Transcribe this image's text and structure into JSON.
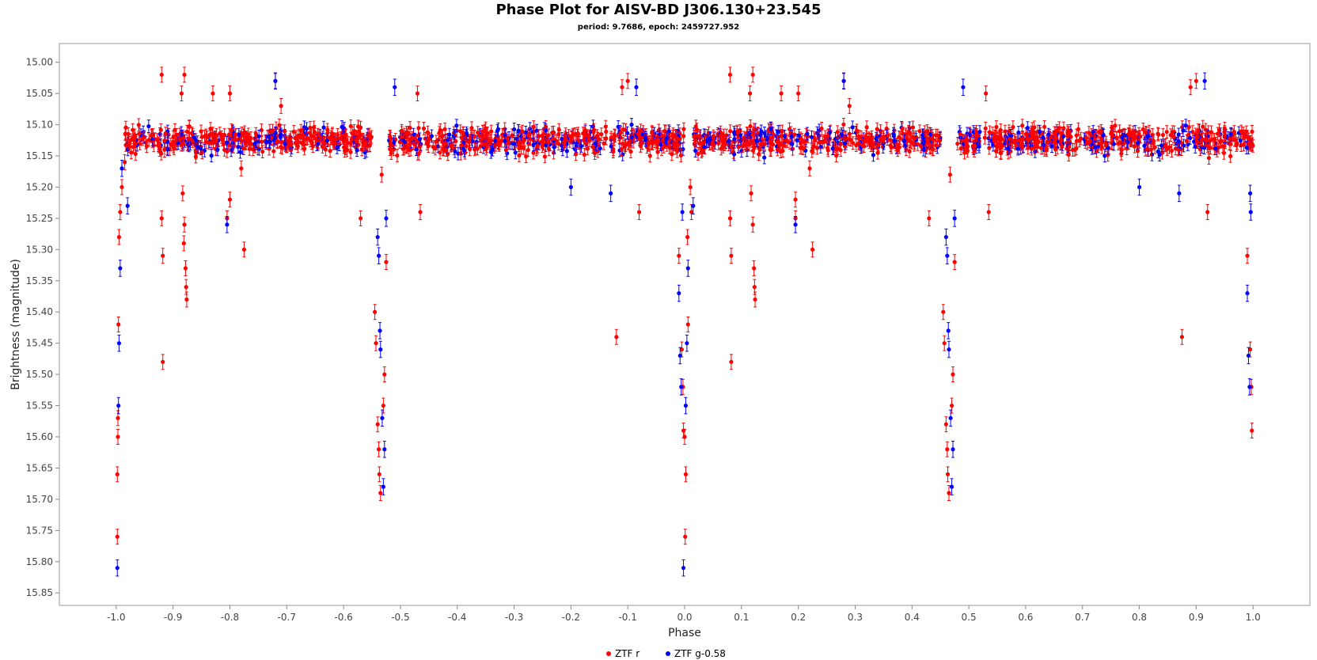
{
  "chart_data": {
    "type": "scatter",
    "title": "Phase Plot for AISV-BD J306.130+23.545",
    "subtitle": "period: 9.7686, epoch: 2459727.952",
    "xlabel": "Phase",
    "ylabel": "Brightness (magnitude)",
    "xlim": [
      -1.1,
      1.1
    ],
    "ylim": [
      15.87,
      14.97
    ],
    "y_inverted": true,
    "grid": false,
    "legend_position": "bottom-center",
    "x_ticks": [
      -1.0,
      -0.9,
      -0.8,
      -0.7,
      -0.6,
      -0.5,
      -0.4,
      -0.3,
      -0.2,
      -0.1,
      0.0,
      0.1,
      0.2,
      0.3,
      0.4,
      0.5,
      0.6,
      0.7,
      0.8,
      0.9,
      1.0
    ],
    "x_tick_labels": [
      "-1.0",
      "-0.9",
      "-0.8",
      "-0.7",
      "-0.6",
      "-0.5",
      "-0.4",
      "-0.3",
      "-0.2",
      "-0.1",
      "0.0",
      "0.1",
      "0.2",
      "0.3",
      "0.4",
      "0.5",
      "0.6",
      "0.7",
      "0.8",
      "0.9",
      "1.0"
    ],
    "y_ticks": [
      15.0,
      15.05,
      15.1,
      15.15,
      15.2,
      15.25,
      15.3,
      15.35,
      15.4,
      15.45,
      15.5,
      15.55,
      15.6,
      15.65,
      15.7,
      15.75,
      15.8,
      15.85
    ],
    "y_tick_labels": [
      "15.00",
      "15.05",
      "15.10",
      "15.15",
      "15.20",
      "15.25",
      "15.30",
      "15.35",
      "15.40",
      "15.45",
      "15.50",
      "15.55",
      "15.60",
      "15.65",
      "15.70",
      "15.75",
      "15.80",
      "15.85"
    ],
    "series": [
      {
        "name": "ZTF r",
        "color": "#ff0000",
        "error": 0.012,
        "points": [
          [
            -0.99,
            15.2
          ],
          [
            -0.995,
            15.28
          ],
          [
            -0.996,
            15.42
          ],
          [
            -0.997,
            15.57
          ],
          [
            -0.997,
            15.6
          ],
          [
            -0.998,
            15.66
          ],
          [
            -0.998,
            15.76
          ],
          [
            -0.993,
            15.24
          ],
          [
            -0.985,
            15.16
          ],
          [
            -0.92,
            15.02
          ],
          [
            -0.92,
            15.25
          ],
          [
            -0.918,
            15.31
          ],
          [
            -0.918,
            15.48
          ],
          [
            -0.915,
            15.14
          ],
          [
            -0.88,
            15.02
          ],
          [
            -0.885,
            15.05
          ],
          [
            -0.88,
            15.26
          ],
          [
            -0.878,
            15.33
          ],
          [
            -0.877,
            15.36
          ],
          [
            -0.876,
            15.38
          ],
          [
            -0.883,
            15.21
          ],
          [
            -0.881,
            15.29
          ],
          [
            -0.83,
            15.05
          ],
          [
            -0.8,
            15.05
          ],
          [
            -0.8,
            15.22
          ],
          [
            -0.805,
            15.25
          ],
          [
            -0.775,
            15.3
          ],
          [
            -0.78,
            15.17
          ],
          [
            -0.72,
            15.03
          ],
          [
            -0.71,
            15.07
          ],
          [
            -0.57,
            15.25
          ],
          [
            -0.545,
            15.4
          ],
          [
            -0.543,
            15.45
          ],
          [
            -0.54,
            15.58
          ],
          [
            -0.538,
            15.62
          ],
          [
            -0.537,
            15.66
          ],
          [
            -0.535,
            15.69
          ],
          [
            -0.53,
            15.55
          ],
          [
            -0.528,
            15.5
          ],
          [
            -0.525,
            15.32
          ],
          [
            -0.533,
            15.18
          ],
          [
            -0.47,
            15.05
          ],
          [
            -0.465,
            15.24
          ],
          [
            -0.12,
            15.44
          ],
          [
            -0.11,
            15.04
          ],
          [
            -0.1,
            15.03
          ],
          [
            -0.08,
            15.24
          ],
          [
            -0.01,
            15.31
          ],
          [
            -0.005,
            15.46
          ],
          [
            -0.003,
            15.52
          ],
          [
            -0.002,
            15.59
          ],
          [
            0.0,
            15.6
          ],
          [
            0.002,
            15.66
          ],
          [
            0.001,
            15.76
          ],
          [
            0.005,
            15.28
          ],
          [
            0.006,
            15.42
          ],
          [
            0.01,
            15.2
          ],
          [
            0.012,
            15.24
          ],
          [
            0.08,
            15.02
          ],
          [
            0.08,
            15.25
          ],
          [
            0.082,
            15.31
          ],
          [
            0.082,
            15.48
          ],
          [
            0.12,
            15.02
          ],
          [
            0.115,
            15.05
          ],
          [
            0.12,
            15.26
          ],
          [
            0.122,
            15.33
          ],
          [
            0.123,
            15.36
          ],
          [
            0.124,
            15.38
          ],
          [
            0.117,
            15.21
          ],
          [
            0.17,
            15.05
          ],
          [
            0.2,
            15.05
          ],
          [
            0.195,
            15.22
          ],
          [
            0.195,
            15.25
          ],
          [
            0.225,
            15.3
          ],
          [
            0.22,
            15.17
          ],
          [
            0.28,
            15.03
          ],
          [
            0.29,
            15.07
          ],
          [
            0.43,
            15.25
          ],
          [
            0.455,
            15.4
          ],
          [
            0.457,
            15.45
          ],
          [
            0.46,
            15.58
          ],
          [
            0.462,
            15.62
          ],
          [
            0.463,
            15.66
          ],
          [
            0.465,
            15.69
          ],
          [
            0.47,
            15.55
          ],
          [
            0.472,
            15.5
          ],
          [
            0.475,
            15.32
          ],
          [
            0.467,
            15.18
          ],
          [
            0.53,
            15.05
          ],
          [
            0.535,
            15.24
          ],
          [
            0.875,
            15.44
          ],
          [
            0.89,
            15.04
          ],
          [
            0.9,
            15.03
          ],
          [
            0.92,
            15.24
          ],
          [
            0.99,
            15.31
          ],
          [
            0.995,
            15.46
          ],
          [
            0.997,
            15.52
          ],
          [
            0.998,
            15.59
          ]
        ]
      },
      {
        "name": "ZTF g-0.58",
        "color": "#0000ff",
        "error": 0.013,
        "points": [
          [
            -0.998,
            15.81
          ],
          [
            -0.996,
            15.55
          ],
          [
            -0.995,
            15.45
          ],
          [
            -0.993,
            15.33
          ],
          [
            -0.99,
            15.17
          ],
          [
            -0.98,
            15.23
          ],
          [
            -0.805,
            15.26
          ],
          [
            -0.72,
            15.03
          ],
          [
            -0.54,
            15.28
          ],
          [
            -0.538,
            15.31
          ],
          [
            -0.536,
            15.43
          ],
          [
            -0.535,
            15.46
          ],
          [
            -0.532,
            15.57
          ],
          [
            -0.53,
            15.68
          ],
          [
            -0.528,
            15.62
          ],
          [
            -0.525,
            15.25
          ],
          [
            -0.51,
            15.04
          ],
          [
            -0.2,
            15.2
          ],
          [
            -0.13,
            15.21
          ],
          [
            -0.085,
            15.04
          ],
          [
            -0.01,
            15.37
          ],
          [
            -0.008,
            15.47
          ],
          [
            -0.006,
            15.52
          ],
          [
            -0.004,
            15.24
          ],
          [
            -0.002,
            15.81
          ],
          [
            0.002,
            15.55
          ],
          [
            0.004,
            15.45
          ],
          [
            0.006,
            15.33
          ],
          [
            0.015,
            15.23
          ],
          [
            0.195,
            15.26
          ],
          [
            0.28,
            15.03
          ],
          [
            0.46,
            15.28
          ],
          [
            0.462,
            15.31
          ],
          [
            0.464,
            15.43
          ],
          [
            0.465,
            15.46
          ],
          [
            0.468,
            15.57
          ],
          [
            0.47,
            15.68
          ],
          [
            0.472,
            15.62
          ],
          [
            0.475,
            15.25
          ],
          [
            0.49,
            15.04
          ],
          [
            0.8,
            15.2
          ],
          [
            0.87,
            15.21
          ],
          [
            0.915,
            15.03
          ],
          [
            0.99,
            15.37
          ],
          [
            0.992,
            15.47
          ],
          [
            0.994,
            15.52
          ],
          [
            0.996,
            15.24
          ],
          [
            0.995,
            15.21
          ]
        ]
      }
    ],
    "baseline_band": {
      "ranges": [
        [
          -0.985,
          -0.55
        ],
        [
          -0.52,
          0.0
        ],
        [
          0.015,
          0.45
        ],
        [
          0.48,
          1.0
        ]
      ],
      "center": 15.125,
      "spread": 0.03,
      "note_series": [
        "ZTF r",
        "ZTF g-0.58"
      ]
    }
  },
  "legend": {
    "items": [
      {
        "label": "ZTF r",
        "color": "#ff0000"
      },
      {
        "label": "ZTF g-0.58",
        "color": "#0000ff"
      }
    ]
  }
}
